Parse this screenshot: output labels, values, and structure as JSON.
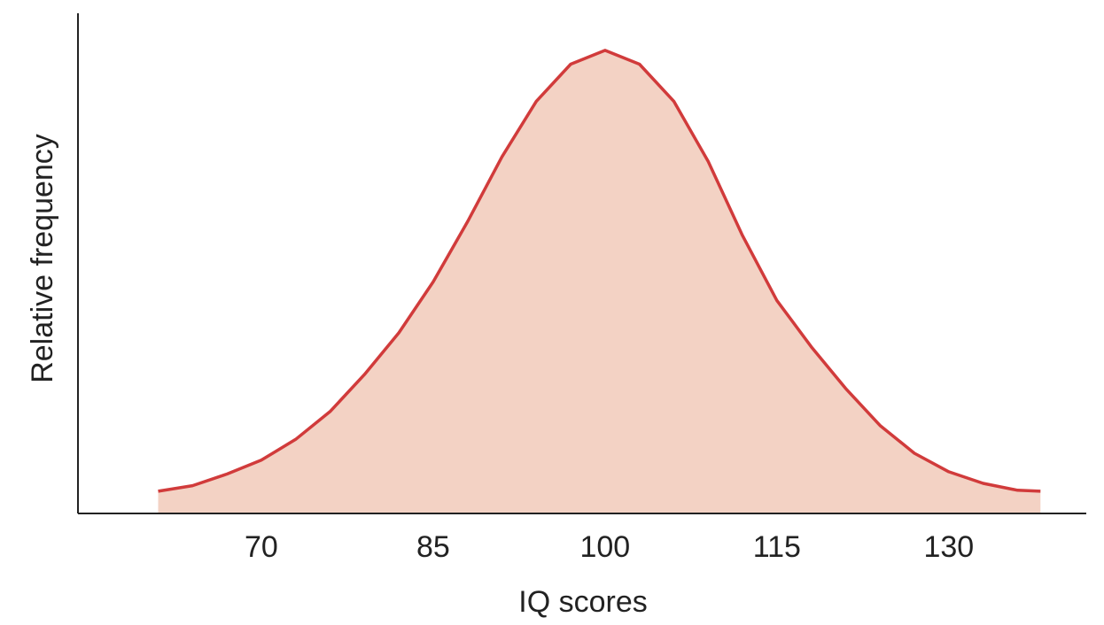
{
  "chart_data": {
    "type": "area",
    "x_label": "IQ scores",
    "y_label": "Relative frequency",
    "x": [
      61,
      64,
      67,
      70,
      73,
      76,
      79,
      82,
      85,
      88,
      91,
      94,
      97,
      100,
      103,
      106,
      109,
      112,
      115,
      118,
      121,
      124,
      127,
      130,
      133,
      136,
      138
    ],
    "values": [
      0.048,
      0.06,
      0.085,
      0.115,
      0.16,
      0.22,
      0.3,
      0.39,
      0.5,
      0.63,
      0.77,
      0.89,
      0.97,
      1.0,
      0.97,
      0.89,
      0.76,
      0.6,
      0.46,
      0.36,
      0.27,
      0.19,
      0.13,
      0.09,
      0.065,
      0.05,
      0.048
    ],
    "line_color": "#d13b3b",
    "fill_color": "#f3d2c4",
    "xlim": [
      54,
      142
    ],
    "xticks": [
      70,
      85,
      100,
      115,
      130
    ],
    "ylim": [
      0,
      1.08
    ]
  }
}
